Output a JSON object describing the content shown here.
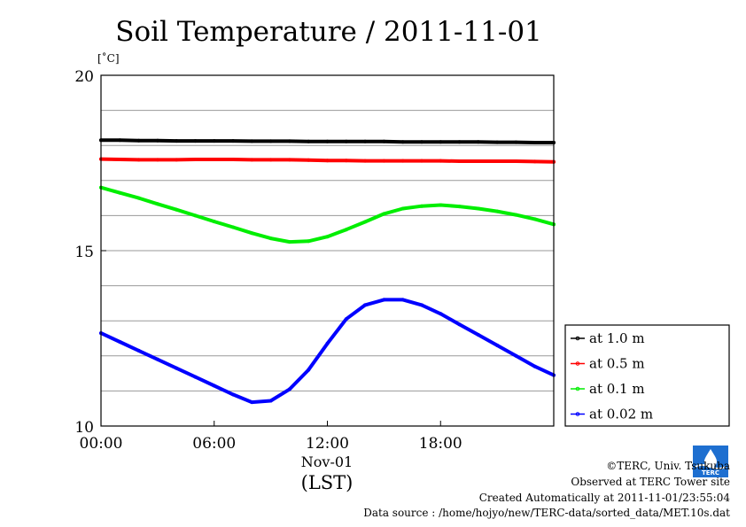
{
  "chart_data": {
    "type": "line",
    "title": "Soil Temperature / 2011-11-01",
    "ylabel": "[˚C]",
    "xlabel": "(LST)",
    "x_date_label": "Nov-01",
    "ylim": [
      10,
      20
    ],
    "xlim": [
      "00:00",
      "24:00"
    ],
    "x_ticks": [
      "00:00",
      "06:00",
      "12:00",
      "18:00"
    ],
    "y_ticks": [
      10,
      15,
      20
    ],
    "y_grid_step": 1,
    "grid": true,
    "legend_position": "right",
    "x": [
      "00:00",
      "01:00",
      "02:00",
      "03:00",
      "04:00",
      "05:00",
      "06:00",
      "07:00",
      "08:00",
      "09:00",
      "10:00",
      "11:00",
      "12:00",
      "13:00",
      "14:00",
      "15:00",
      "16:00",
      "17:00",
      "18:00",
      "19:00",
      "20:00",
      "21:00",
      "22:00",
      "23:00",
      "24:00"
    ],
    "series": [
      {
        "name": "at 1.0 m",
        "color": "#000000",
        "values": [
          18.15,
          18.15,
          18.14,
          18.14,
          18.13,
          18.13,
          18.13,
          18.13,
          18.12,
          18.12,
          18.12,
          18.11,
          18.11,
          18.11,
          18.11,
          18.11,
          18.1,
          18.1,
          18.1,
          18.1,
          18.1,
          18.09,
          18.09,
          18.08,
          18.08
        ]
      },
      {
        "name": "at 0.5 m",
        "color": "#ff0000",
        "values": [
          17.61,
          17.6,
          17.59,
          17.59,
          17.59,
          17.6,
          17.6,
          17.6,
          17.59,
          17.59,
          17.59,
          17.58,
          17.57,
          17.57,
          17.56,
          17.56,
          17.56,
          17.56,
          17.56,
          17.55,
          17.55,
          17.55,
          17.55,
          17.54,
          17.53
        ]
      },
      {
        "name": "at 0.1 m",
        "color": "#00ee00",
        "values": [
          16.8,
          16.65,
          16.5,
          16.33,
          16.17,
          16.0,
          15.83,
          15.67,
          15.5,
          15.35,
          15.25,
          15.27,
          15.4,
          15.6,
          15.82,
          16.05,
          16.2,
          16.27,
          16.3,
          16.26,
          16.2,
          16.12,
          16.02,
          15.9,
          15.75
        ]
      },
      {
        "name": "at 0.02 m",
        "color": "#0000ff",
        "values": [
          12.65,
          12.4,
          12.15,
          11.9,
          11.65,
          11.4,
          11.15,
          10.9,
          10.68,
          10.72,
          11.05,
          11.6,
          12.35,
          13.05,
          13.45,
          13.6,
          13.6,
          13.45,
          13.2,
          12.9,
          12.6,
          12.3,
          12.0,
          11.7,
          11.45
        ]
      }
    ]
  },
  "credits": {
    "copyright": "©TERC, Univ. Tsukuba",
    "observed": "Observed at TERC Tower site",
    "created": "Created Automatically at 2011-11-01/23:55:04",
    "source": "Data source : /home/hojyo/new/TERC-data/sorted_data/MET.10s.dat",
    "logo_text": "TERC"
  }
}
